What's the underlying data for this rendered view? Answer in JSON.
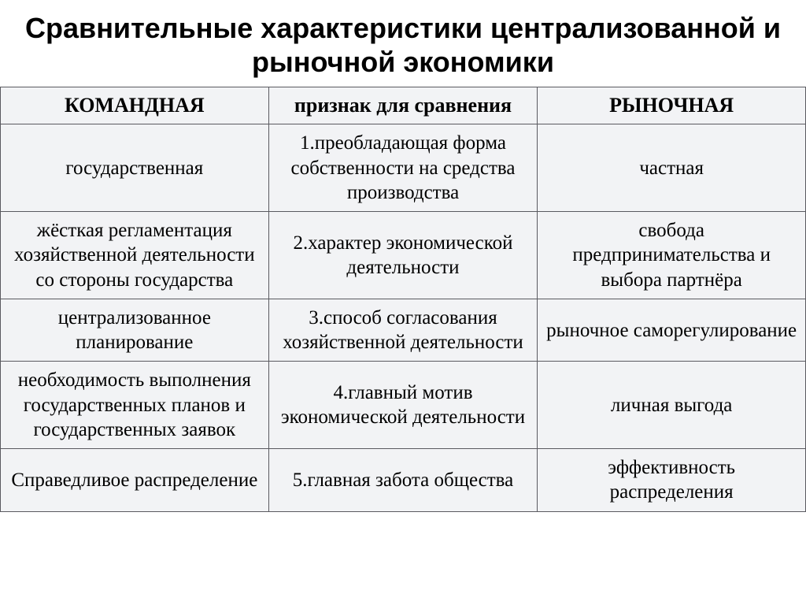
{
  "title": "Сравнительные характеристики централизованной и рыночной экономики",
  "table": {
    "type": "table",
    "background_color": "#f2f3f5",
    "border_color": "#5a5a60",
    "header_fontsize": 26,
    "header_fontweight": 700,
    "cell_fontsize": 25,
    "columns": [
      {
        "label": "КОМАНДНАЯ",
        "width": "33.3%"
      },
      {
        "label": "признак для сравнения",
        "width": "33.4%"
      },
      {
        "label": "РЫНОЧНАЯ",
        "width": "33.3%"
      }
    ],
    "rows": [
      {
        "command": "государственная",
        "criterion": "1.преобладающая форма собственности на средства производства",
        "market": "частная"
      },
      {
        "command": "жёсткая регламентация хозяйственной деятельности со стороны государства",
        "criterion": "2.характер экономической деятельности",
        "market": "свобода предпринимательства и выбора партнёра"
      },
      {
        "command": "централизованное планирование",
        "criterion": "3.способ согласования хозяйственной деятельности",
        "market": "рыночное саморегулирование"
      },
      {
        "command": "необходимость выполнения государственных планов и государственных заявок",
        "criterion": "4.главный мотив экономической деятельности",
        "market": "личная выгода"
      },
      {
        "command": "Справедливое распределение",
        "criterion": "5.главная забота общества",
        "market": "эффективность распределения"
      }
    ]
  }
}
